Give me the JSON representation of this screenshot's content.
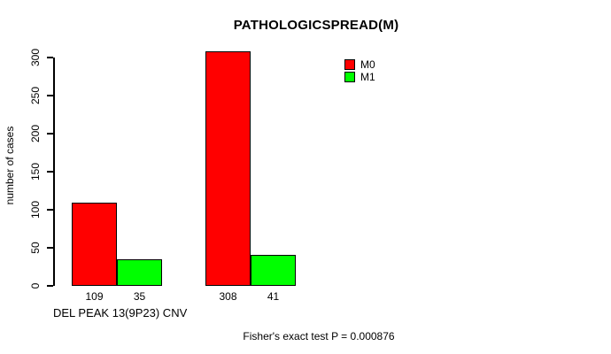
{
  "chart_data": {
    "type": "bar",
    "title": "PATHOLOGICSPREAD(M)",
    "ylabel": "number of cases",
    "xlabel": "DEL PEAK 13(9P23) CNV",
    "footnote": "Fisher's exact test P = 0.000876",
    "series": [
      {
        "name": "M0",
        "color": "#ff0000",
        "values": [
          109,
          308
        ]
      },
      {
        "name": "M1",
        "color": "#00ff00",
        "values": [
          35,
          41
        ]
      }
    ],
    "ylim": [
      0,
      300
    ],
    "yticks": [
      0,
      50,
      100,
      150,
      200,
      250,
      300
    ],
    "grid": false,
    "legend_position": "top-right-inside",
    "bar_border_color": "#000000",
    "background_color": "#ffffff"
  }
}
